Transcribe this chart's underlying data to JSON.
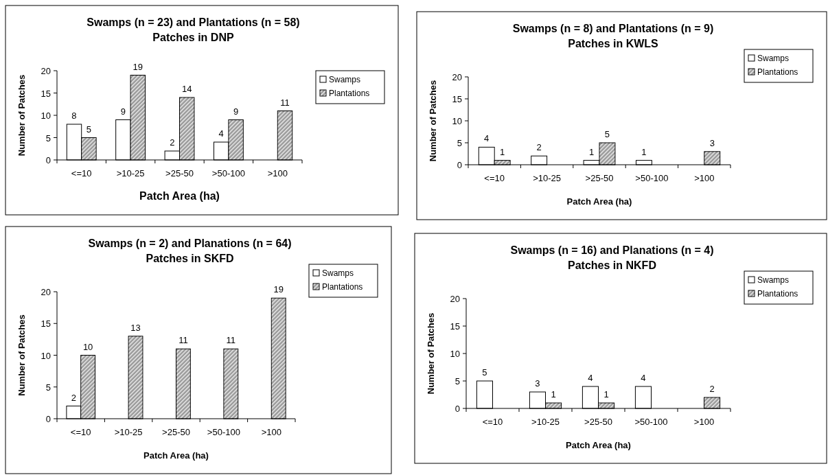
{
  "chart_data": [
    {
      "type": "bar",
      "title": "Swamps (n = 23) and Plantations (n = 58) Patches in DNP",
      "xlabel": "Patch Area (ha)",
      "ylabel": "Number of Patches",
      "categories": [
        "<=10",
        ">10-25",
        ">25-50",
        ">50-100",
        ">100"
      ],
      "series": [
        {
          "name": "Swamps",
          "color": "#ffffff",
          "values": [
            8,
            9,
            2,
            4,
            null
          ]
        },
        {
          "name": "Plantations",
          "color": "#999999",
          "values": [
            5,
            19,
            14,
            9,
            11
          ]
        }
      ],
      "ylim": [
        0,
        20
      ],
      "yticks": [
        0,
        5,
        10,
        15,
        20
      ],
      "grid": false,
      "legend": "right",
      "data_labels": true
    },
    {
      "type": "bar",
      "title": "Swamps (n = 8) and Plantations (n = 9) Patches in KWLS",
      "xlabel": "Patch Area (ha)",
      "ylabel": "Number of Patches",
      "categories": [
        "<=10",
        ">10-25",
        ">25-50",
        ">50-100",
        ">100"
      ],
      "series": [
        {
          "name": "Swamps",
          "color": "#ffffff",
          "values": [
            4,
            2,
            1,
            1,
            null
          ]
        },
        {
          "name": "Plantations",
          "color": "#999999",
          "values": [
            1,
            null,
            5,
            null,
            3
          ]
        }
      ],
      "ylim": [
        0,
        20
      ],
      "yticks": [
        0,
        5,
        10,
        15,
        20
      ],
      "grid": false,
      "legend": "top right",
      "data_labels": true
    },
    {
      "type": "bar",
      "title": "Swamps (n = 2) and Planations (n = 64) Patches in SKFD",
      "xlabel": "Patch Area (ha)",
      "ylabel": "Number of Patches",
      "categories": [
        "<=10",
        ">10-25",
        ">25-50",
        ">50-100",
        ">100"
      ],
      "series": [
        {
          "name": "Swamps",
          "color": "#ffffff",
          "values": [
            2,
            null,
            null,
            null,
            null
          ]
        },
        {
          "name": "Plantations",
          "color": "#999999",
          "values": [
            10,
            13,
            11,
            11,
            19
          ]
        }
      ],
      "ylim": [
        0,
        20
      ],
      "yticks": [
        0,
        5,
        10,
        15,
        20
      ],
      "grid": false,
      "legend": "top right",
      "data_labels": true
    },
    {
      "type": "bar",
      "title": "Swamps (n = 16) and Planations (n = 4) Patches in NKFD",
      "xlabel": "Patch Area (ha)",
      "ylabel": "Number of Patches",
      "categories": [
        "<=10",
        ">10-25",
        ">25-50",
        ">50-100",
        ">100"
      ],
      "series": [
        {
          "name": "Swamps",
          "color": "#ffffff",
          "values": [
            5,
            3,
            4,
            4,
            null
          ]
        },
        {
          "name": "Plantations",
          "color": "#999999",
          "values": [
            null,
            1,
            1,
            null,
            2
          ]
        }
      ],
      "ylim": [
        0,
        20
      ],
      "yticks": [
        0,
        5,
        10,
        15,
        20
      ],
      "grid": false,
      "legend": "top right",
      "data_labels": true
    }
  ]
}
